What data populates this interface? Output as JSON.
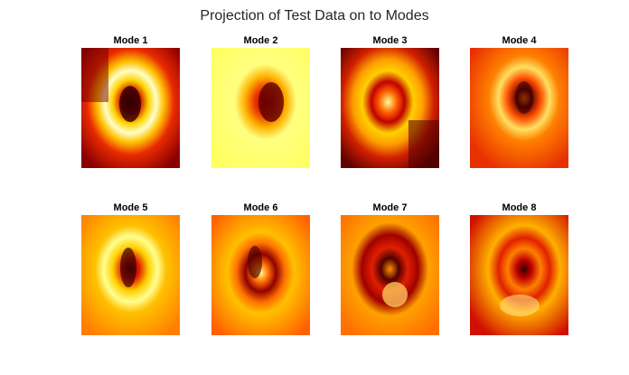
{
  "figure": {
    "title": "Projection of Test Data on to Modes"
  },
  "panels": [
    {
      "title": "Mode 1"
    },
    {
      "title": "Mode 2"
    },
    {
      "title": "Mode 3"
    },
    {
      "title": "Mode 4"
    },
    {
      "title": "Mode 5"
    },
    {
      "title": "Mode 6"
    },
    {
      "title": "Mode 7"
    },
    {
      "title": "Mode 8"
    }
  ],
  "colors": {
    "colormap": "hot",
    "dark": "#3a0000",
    "red": "#cc0000",
    "orange": "#ff6a00",
    "yellow": "#ffe000",
    "white": "#ffffe0"
  }
}
